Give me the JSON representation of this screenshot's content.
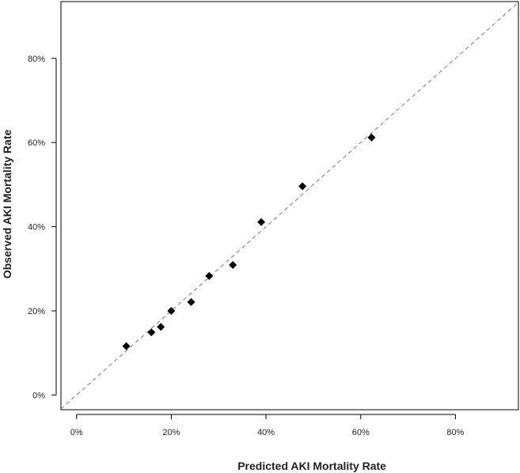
{
  "chart_data": {
    "type": "scatter",
    "title": "",
    "xlabel": "Predicted AKI Mortality Rate",
    "ylabel": "Observed AKI Mortality Rate",
    "xlim": [
      -3.3,
      93.3
    ],
    "ylim": [
      -3.5,
      93.5
    ],
    "x_ticks": [
      0,
      20,
      40,
      60,
      80
    ],
    "y_ticks": [
      0,
      20,
      40,
      60,
      80
    ],
    "x_tick_labels": [
      "0%",
      "20%",
      "40%",
      "60%",
      "80%"
    ],
    "y_tick_labels": [
      "0%",
      "20%",
      "40%",
      "60%",
      "80%"
    ],
    "reference_line": {
      "style": "dashed",
      "slope": 1,
      "intercept": 0
    },
    "marker": "diamond",
    "grid": false,
    "points": [
      {
        "x": 10.5,
        "y": 11.6
      },
      {
        "x": 15.8,
        "y": 14.9
      },
      {
        "x": 17.8,
        "y": 16.2
      },
      {
        "x": 20.0,
        "y": 20.0
      },
      {
        "x": 24.2,
        "y": 22.1
      },
      {
        "x": 28.0,
        "y": 28.3
      },
      {
        "x": 33.0,
        "y": 30.9
      },
      {
        "x": 39.0,
        "y": 41.1
      },
      {
        "x": 47.7,
        "y": 49.6
      },
      {
        "x": 62.3,
        "y": 61.2
      }
    ],
    "colors": {
      "marker": "#000000",
      "reference_line": "#777777",
      "frame": "#000000"
    }
  }
}
